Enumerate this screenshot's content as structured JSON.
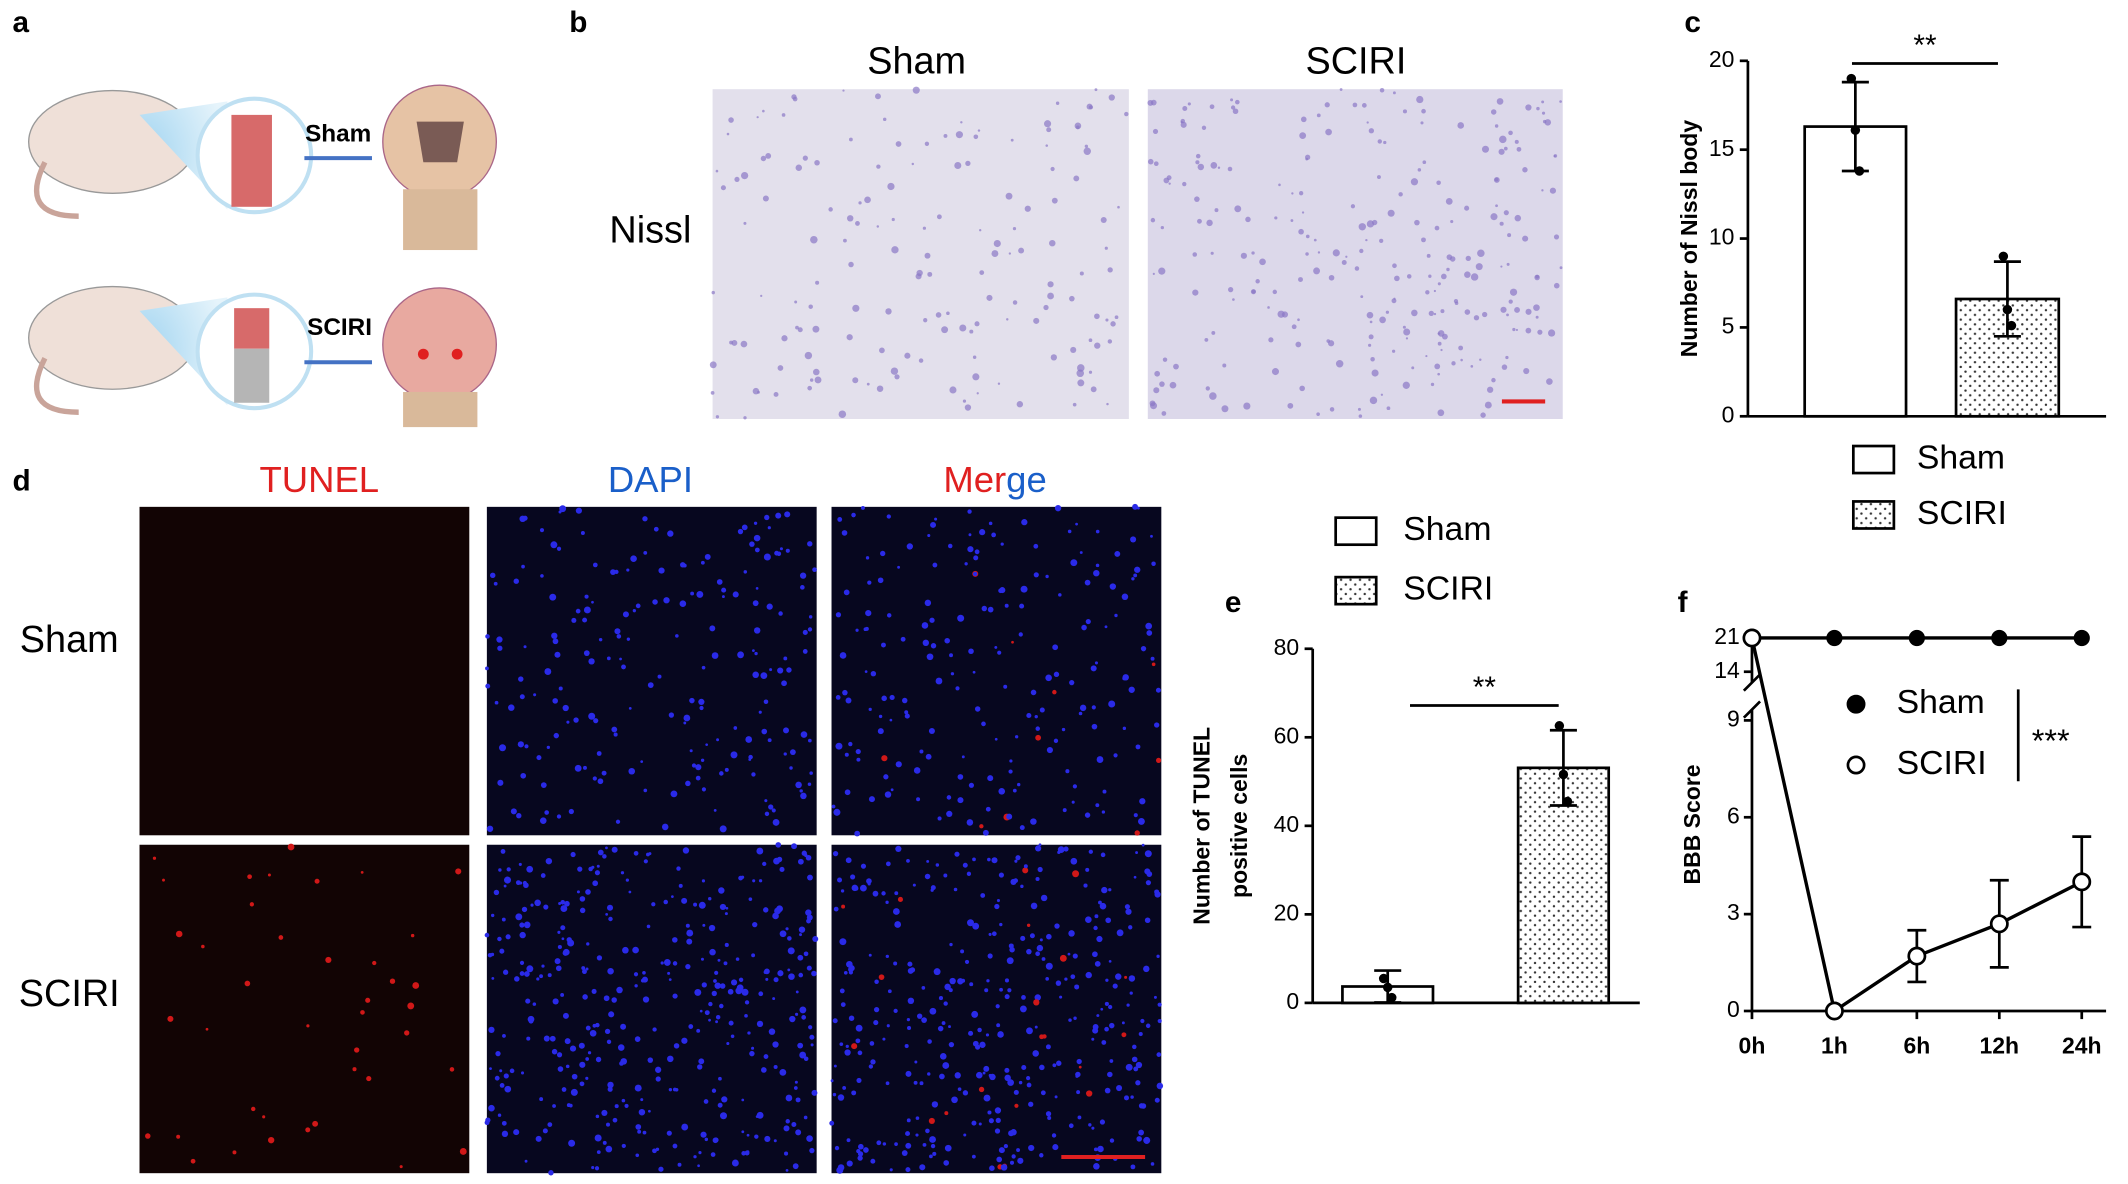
{
  "figure": {
    "a": {
      "label": "a",
      "arrows": [
        "Sham",
        "SCIRI"
      ]
    },
    "b": {
      "label": "b",
      "columns": [
        "Sham",
        "SCIRI"
      ],
      "row": "Nissl"
    },
    "d": {
      "label": "d",
      "columns": [
        "TUNEL",
        "DAPI",
        "Merge"
      ],
      "rows": [
        "Sham",
        "SCIRI"
      ]
    }
  },
  "chart_data": [
    {
      "type": "bar",
      "panel": "c",
      "ylabel": "Number of Nissl body",
      "categories": [
        "Sham",
        "SCIRI"
      ],
      "values": [
        16.3,
        6.6
      ],
      "errors": [
        2.5,
        2.1
      ],
      "points": [
        [
          19,
          16.1,
          13.8
        ],
        [
          9,
          6,
          5.1
        ]
      ],
      "patterns": [
        "none",
        "dots"
      ],
      "ylim": [
        0,
        20
      ],
      "yticks": [
        0,
        5,
        10,
        15,
        20
      ],
      "annotation": "**",
      "legend": "bottom"
    },
    {
      "type": "bar",
      "panel": "e",
      "ylabel": [
        "Number of TUNEL",
        "positive cells"
      ],
      "categories": [
        "Sham",
        "SCIRI"
      ],
      "values": [
        3.7,
        53.1
      ],
      "errors": [
        3.6,
        8.5
      ],
      "points": [
        [
          5.5,
          3.5,
          1.2
        ],
        [
          62.6,
          51.6,
          45.5
        ]
      ],
      "patterns": [
        "none",
        "dots"
      ],
      "ylim": [
        0,
        80
      ],
      "yticks": [
        0,
        20,
        40,
        60,
        80
      ],
      "annotation": "**",
      "legend": "top"
    },
    {
      "type": "line",
      "panel": "f",
      "ylabel": "BBB Score",
      "categories": [
        "0h",
        "1h",
        "6h",
        "12h",
        "24h"
      ],
      "series": [
        {
          "name": "Sham",
          "color": "#000000",
          "marker": "filled",
          "values": [
            21,
            21,
            21,
            21,
            21
          ]
        },
        {
          "name": "SCIRI",
          "color": "#000000",
          "marker": "open",
          "values": [
            21,
            0,
            1.7,
            2.7,
            4.0
          ],
          "errors": [
            0,
            0,
            0.8,
            1.35,
            1.4
          ]
        }
      ],
      "ylim": [
        0,
        21
      ],
      "yticks": [
        0,
        3,
        6,
        9,
        14,
        21
      ],
      "y_break": [
        9,
        14
      ],
      "annotation": "***"
    }
  ]
}
